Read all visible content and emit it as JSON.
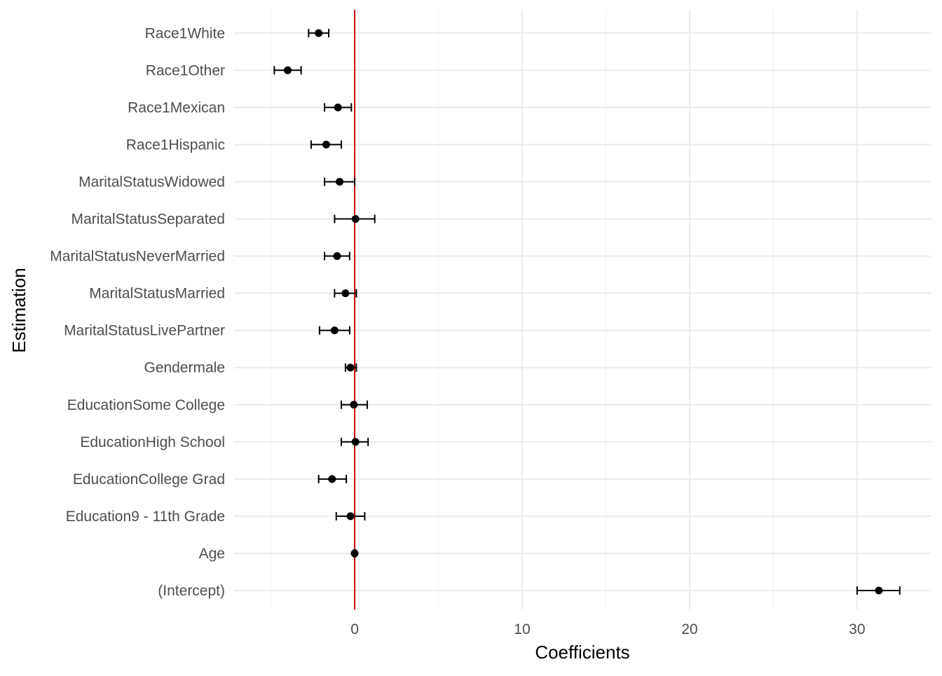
{
  "chart_data": {
    "type": "scatter",
    "subtype": "coefficient-plot-with-error-bars",
    "xlabel": "Coefficients",
    "ylabel": "Estimation",
    "xlim": [
      -7.2,
      34.4
    ],
    "x_ticks": [
      0,
      10,
      20,
      30
    ],
    "x_tick_labels": [
      "0",
      "10",
      "20",
      "30"
    ],
    "reference_line": {
      "x": 0,
      "color": "#cc0000"
    },
    "point_color": "#000000",
    "grid": true,
    "legend": "none",
    "categories": [
      "(Intercept)",
      "Age",
      "Education9 - 11th Grade",
      "EducationCollege Grad",
      "EducationHigh School",
      "EducationSome College",
      "Gendermale",
      "MaritalStatusLivePartner",
      "MaritalStatusMarried",
      "MaritalStatusNeverMarried",
      "MaritalStatusSeparated",
      "MaritalStatusWidowed",
      "Race1Hispanic",
      "Race1Mexican",
      "Race1Other",
      "Race1White"
    ],
    "estimates": [
      31.3,
      0.0,
      -0.25,
      -1.35,
      0.05,
      -0.05,
      -0.25,
      -1.2,
      -0.55,
      -1.05,
      0.05,
      -0.9,
      -1.7,
      -1.0,
      -4.0,
      -2.15
    ],
    "lower": [
      30.0,
      -0.05,
      -1.1,
      -2.15,
      -0.8,
      -0.8,
      -0.55,
      -2.1,
      -1.2,
      -1.8,
      -1.2,
      -1.8,
      -2.6,
      -1.8,
      -4.8,
      -2.75
    ],
    "upper": [
      32.55,
      0.05,
      0.6,
      -0.5,
      0.8,
      0.75,
      0.1,
      -0.3,
      0.1,
      -0.3,
      1.2,
      0.0,
      -0.8,
      -0.2,
      -3.2,
      -1.55
    ]
  }
}
